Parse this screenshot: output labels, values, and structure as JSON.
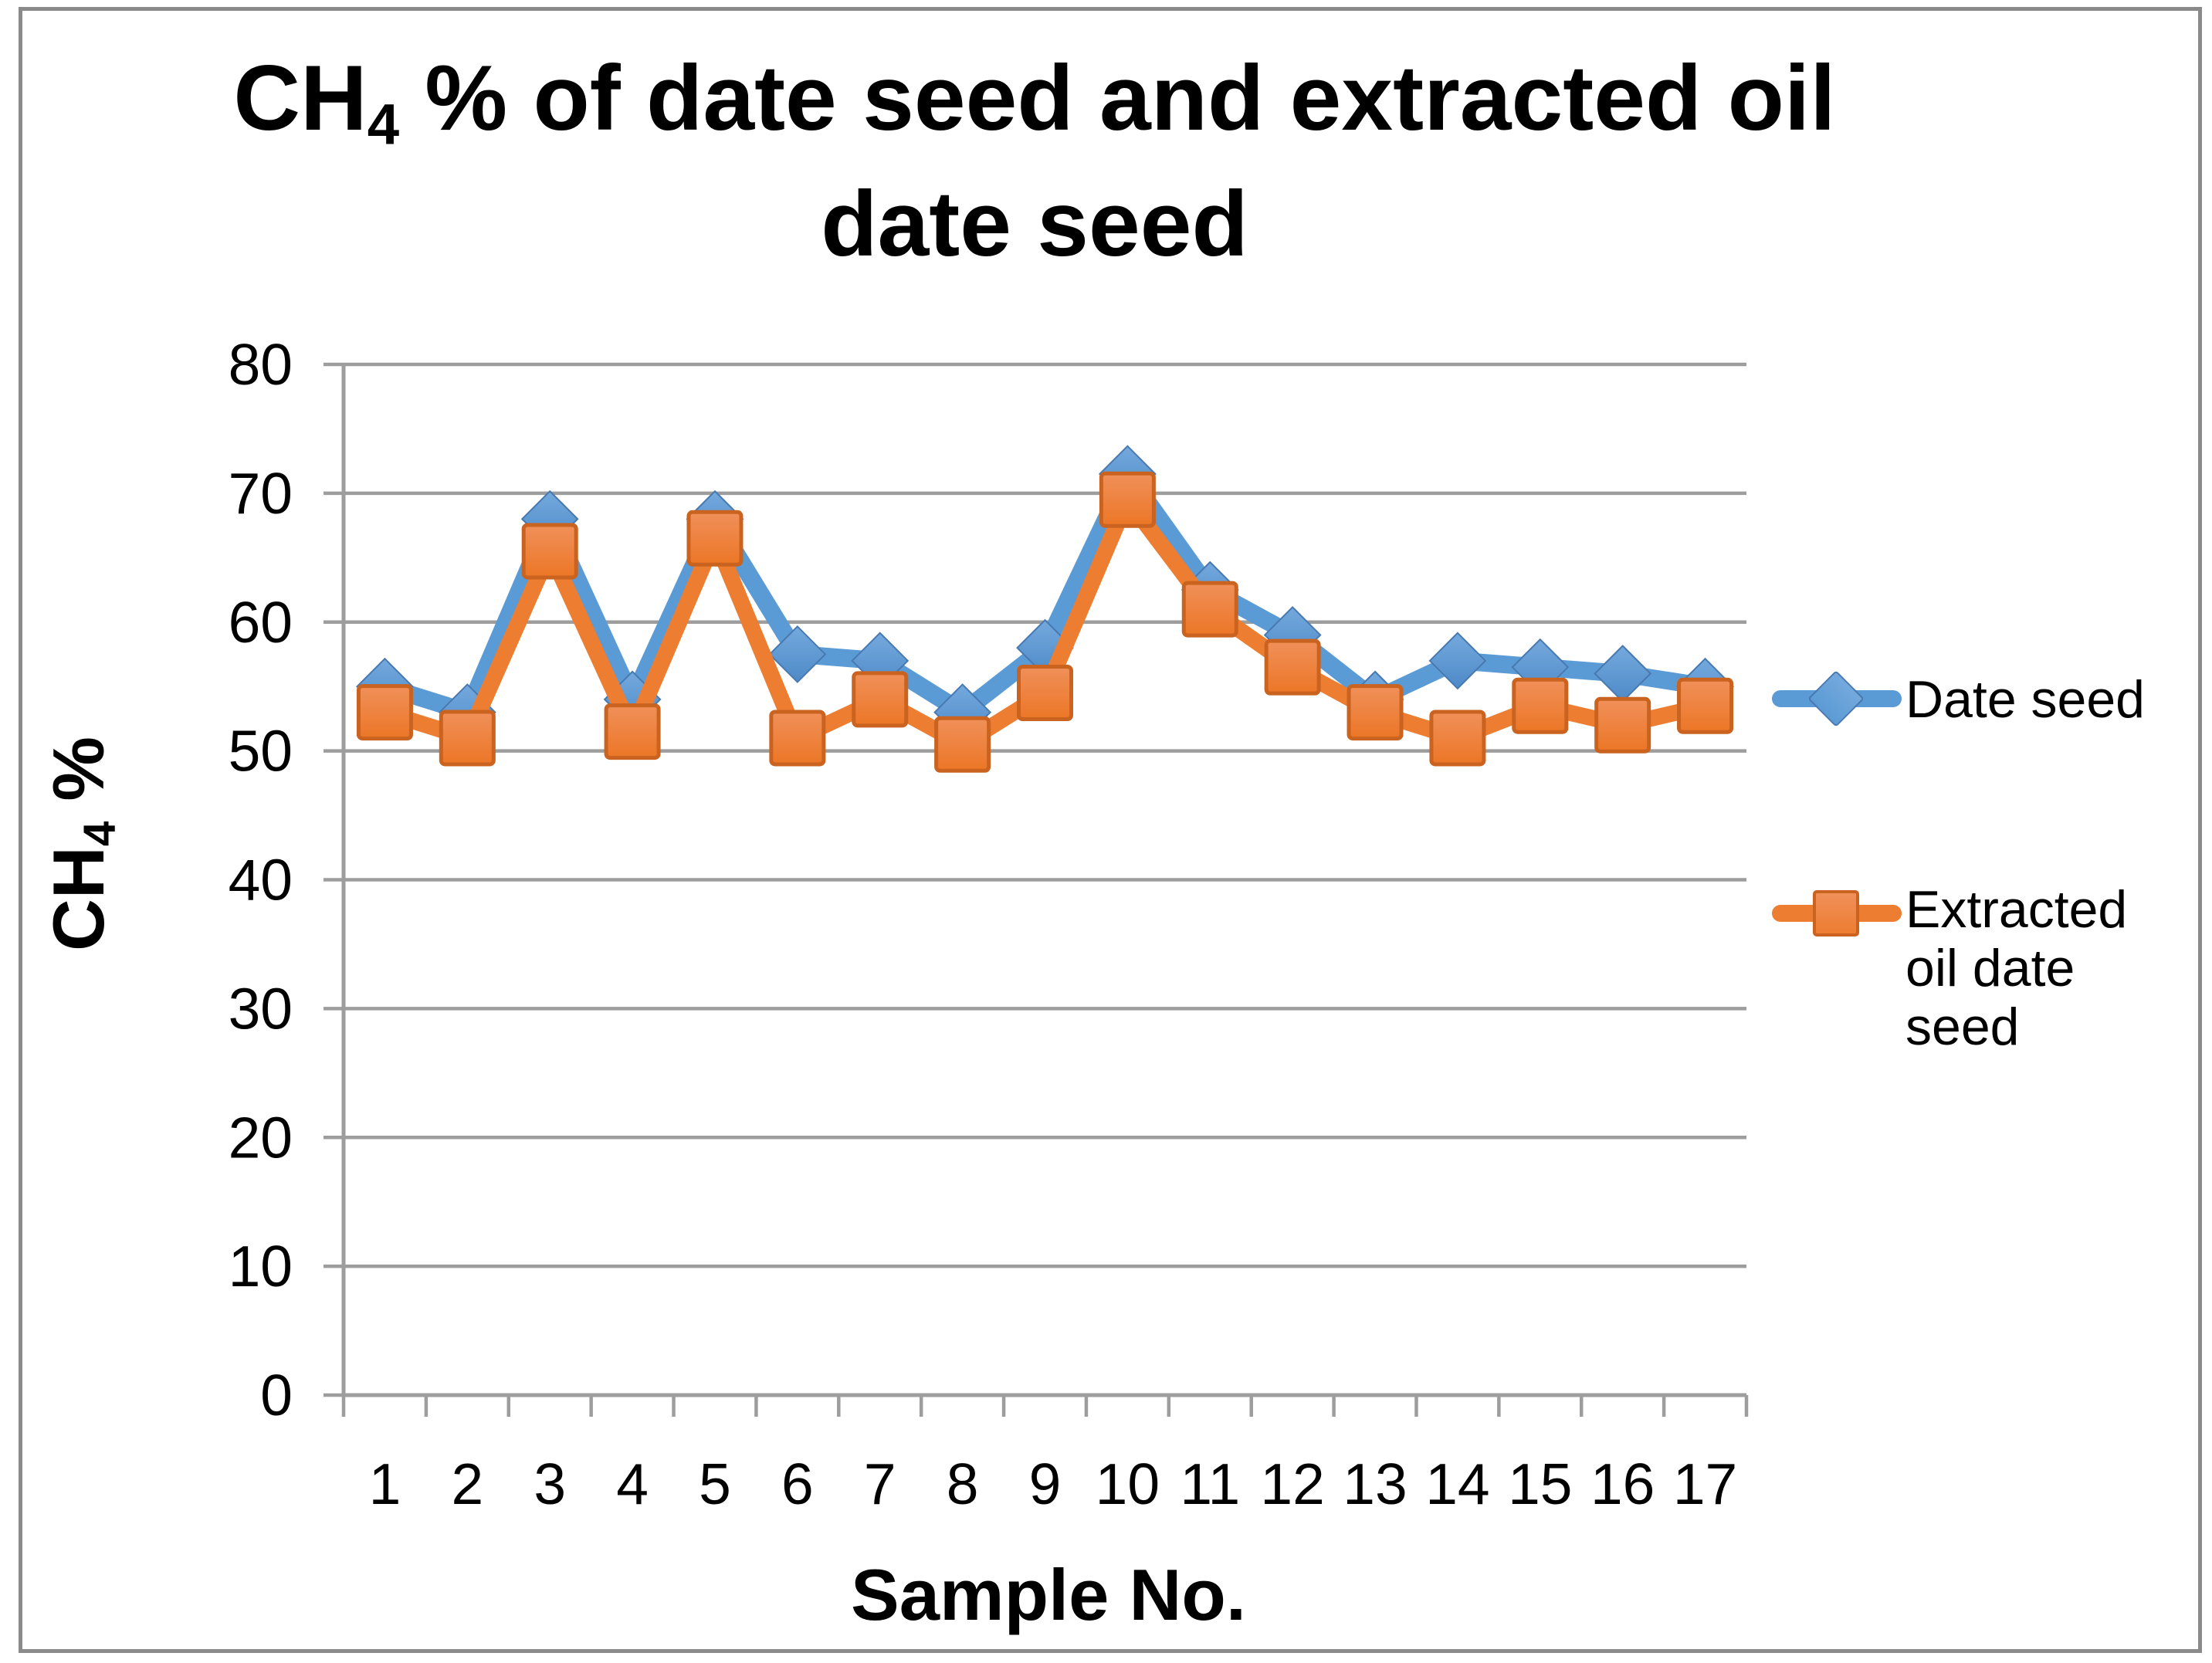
{
  "title": {
    "prefix": "CH",
    "subscript": "4",
    "line1_rest": " % of date seed and extracted oil",
    "line2": "date seed"
  },
  "y_axis": {
    "title_prefix": "CH",
    "title_subscript": "4",
    "title_rest": " %"
  },
  "x_axis": {
    "title": "Sample No."
  },
  "colors": {
    "series1": "#5B9BD5",
    "series1_edge": "#4879B0",
    "series1_light": "#74A9DD",
    "series2": "#ED7D31",
    "series2_edge": "#C9631F",
    "series2_light": "#F0905A",
    "gridline": "#9d9d9d",
    "frame_border": "#8a8a8a",
    "text": "#000000"
  },
  "chart_data": {
    "type": "line",
    "title": "CH4 % of date seed and extracted oil date seed",
    "xlabel": "Sample No.",
    "ylabel": "CH4 %",
    "categories": [
      1,
      2,
      3,
      4,
      5,
      6,
      7,
      8,
      9,
      10,
      11,
      12,
      13,
      14,
      15,
      16,
      17
    ],
    "series": [
      {
        "name": "Date seed",
        "marker": "diamond",
        "color": "#5B9BD5",
        "values": [
          55,
          53,
          68,
          54,
          68,
          57.5,
          57,
          53,
          58,
          71.5,
          62.5,
          59,
          54,
          57,
          56.5,
          56,
          55
        ]
      },
      {
        "name": "Extracted oil date seed",
        "marker": "square",
        "color": "#ED7D31",
        "values": [
          53,
          51,
          65.5,
          51.5,
          66.5,
          51,
          54,
          50.5,
          54.5,
          69.5,
          61,
          56.5,
          53,
          51,
          53.5,
          52,
          53.5
        ]
      }
    ],
    "ylim": [
      0,
      80
    ],
    "ytick_step": 10,
    "grid": true,
    "legend_position": "right"
  }
}
